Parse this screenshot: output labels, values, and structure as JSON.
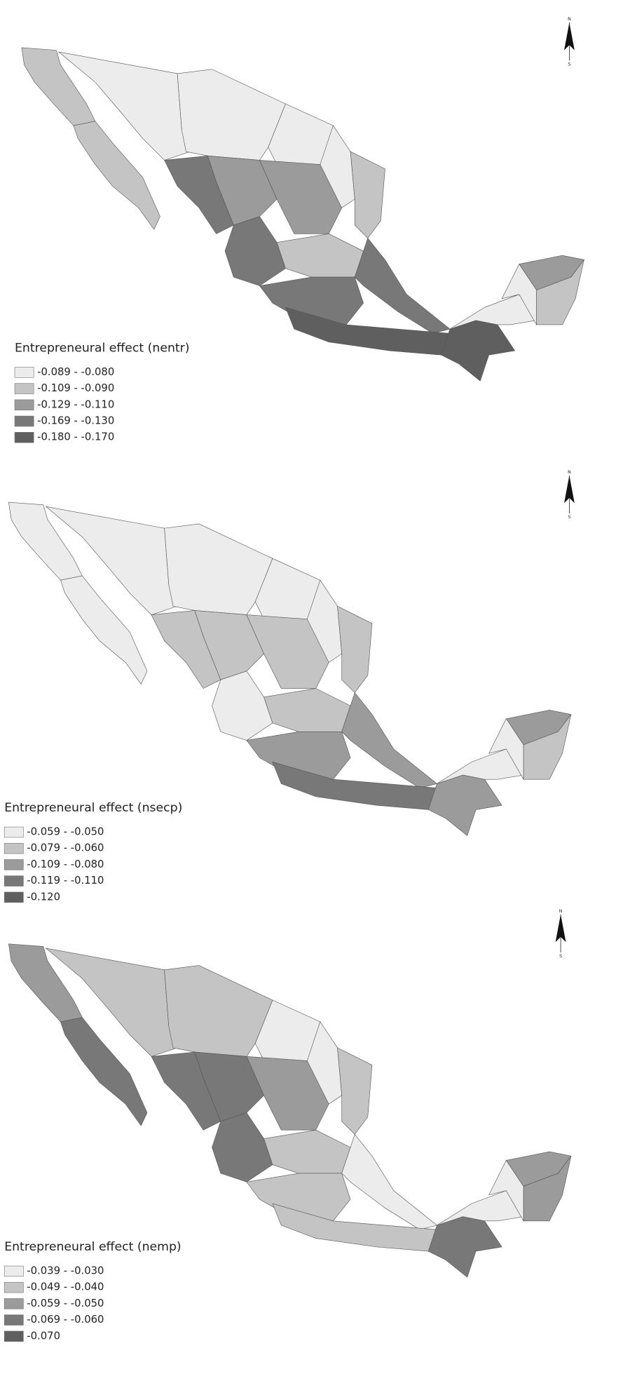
{
  "maps": [
    {
      "legend_title": "Entrepreneural effect (nentr)",
      "legend": [
        {
          "label": "-0.089 - -0.080",
          "color": "#ececec"
        },
        {
          "label": "-0.109 - -0.090",
          "color": "#c4c4c4"
        },
        {
          "label": "-0.129 - -0.110",
          "color": "#9b9b9b"
        },
        {
          "label": "-0.169 - -0.130",
          "color": "#787878"
        },
        {
          "label": "-0.180 - -0.170",
          "color": "#5f5f5f"
        }
      ],
      "compass": {
        "north": "N",
        "south": "S"
      }
    },
    {
      "legend_title": "Entrepreneural effect (nsecp)",
      "legend": [
        {
          "label": "-0.059 - -0.050",
          "color": "#ececec"
        },
        {
          "label": "-0.079 - -0.060",
          "color": "#c4c4c4"
        },
        {
          "label": "-0.109 - -0.080",
          "color": "#9b9b9b"
        },
        {
          "label": "-0.119 - -0.110",
          "color": "#787878"
        },
        {
          "label": "-0.120",
          "color": "#5f5f5f"
        }
      ],
      "compass": {
        "north": "N",
        "south": "S"
      }
    },
    {
      "legend_title": "Entrepreneural effect (nemp)",
      "legend": [
        {
          "label": "-0.039 - -0.030",
          "color": "#ececec"
        },
        {
          "label": "-0.049 - -0.040",
          "color": "#c4c4c4"
        },
        {
          "label": "-0.059 - -0.050",
          "color": "#9b9b9b"
        },
        {
          "label": "-0.069 - -0.060",
          "color": "#787878"
        },
        {
          "label": "-0.070",
          "color": "#5f5f5f"
        }
      ],
      "compass": {
        "north": "N",
        "south": "S"
      }
    }
  ]
}
